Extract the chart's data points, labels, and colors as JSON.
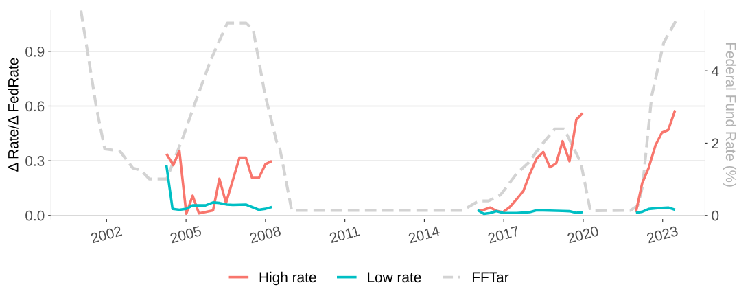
{
  "chart_data": {
    "type": "line",
    "ylabel": "Δ Rate/Δ FedRate",
    "y2label": "Federal Fund Rate (%)",
    "xlim": [
      1999.9,
      2024.6
    ],
    "xticks": [
      2002,
      2005,
      2008,
      2011,
      2014,
      2017,
      2020,
      2023
    ],
    "ylim": [
      -0.02,
      1.125
    ],
    "yticks": [
      {
        "value": 0,
        "label": "0.0"
      },
      {
        "value": 0.3,
        "label": "0.3"
      },
      {
        "value": 0.6,
        "label": "0.6"
      },
      {
        "value": 0.9,
        "label": "0.9"
      }
    ],
    "y2lim": [
      -0.1,
      5.67
    ],
    "y2ticks": [
      0,
      2,
      4
    ],
    "grid": "y",
    "legend": "bottom",
    "series": [
      {
        "name": "High rate",
        "color": "#f8766d",
        "line_style": "solid",
        "x": [
          2004.26,
          2004.52,
          2004.75,
          2005.01,
          2005.25,
          2005.49,
          2006.02,
          2006.26,
          2006.51,
          2007.02,
          2007.26,
          2007.49,
          2007.75,
          2008.0,
          2008.24,
          null,
          2016.01,
          2016.23,
          2016.49,
          2016.72,
          2016.97,
          2017.23,
          2017.49,
          2017.74,
          2017.98,
          2018.24,
          2018.49,
          2018.74,
          2018.98,
          2019.22,
          2019.48,
          2019.74,
          2019.98,
          null,
          2021.99,
          2022.23,
          2022.47,
          2022.73,
          2022.97,
          2023.21,
          2023.47
        ],
        "values": [
          0.338,
          0.276,
          0.354,
          0.009,
          0.108,
          0.011,
          0.027,
          0.201,
          0.068,
          0.317,
          0.317,
          0.207,
          0.206,
          0.281,
          0.298,
          null,
          0.027,
          0.03,
          0.043,
          0.025,
          0.018,
          0.046,
          0.09,
          0.134,
          0.226,
          0.312,
          0.348,
          0.264,
          0.285,
          0.407,
          0.297,
          0.526,
          0.561,
          null,
          0.018,
          0.178,
          0.26,
          0.385,
          0.454,
          0.469,
          0.577
        ]
      },
      {
        "name": "Low rate",
        "color": "#00bfc4",
        "line_style": "solid",
        "x": [
          2004.26,
          2004.49,
          2004.75,
          2005.01,
          2005.25,
          2005.74,
          2006.02,
          2006.26,
          2006.55,
          2006.77,
          2007.26,
          2007.75,
          2008.0,
          2008.24,
          null,
          2016.01,
          2016.25,
          2016.49,
          2016.72,
          2016.97,
          2017.49,
          2017.98,
          2018.24,
          2018.74,
          2019.22,
          2019.48,
          2019.74,
          2019.98,
          null,
          2021.99,
          2022.23,
          2022.47,
          2022.73,
          2022.97,
          2023.21,
          2023.47
        ],
        "values": [
          0.275,
          0.036,
          0.031,
          0.036,
          0.055,
          0.055,
          0.071,
          0.068,
          0.059,
          0.057,
          0.059,
          0.031,
          0.036,
          0.046,
          null,
          0.029,
          0.008,
          0.013,
          0.023,
          0.014,
          0.013,
          0.018,
          0.028,
          0.026,
          0.024,
          0.023,
          0.014,
          0.018,
          null,
          0.014,
          0.02,
          0.035,
          0.039,
          0.041,
          0.043,
          0.031
        ]
      },
      {
        "name": "FFTar",
        "color": "#d3d3d3",
        "line_style": "dashed",
        "axis": "y2",
        "x": [
          2001.03,
          2001.62,
          2001.93,
          2002.5,
          2002.99,
          2003.3,
          2003.61,
          2004.27,
          2004.89,
          2005.33,
          2005.95,
          2006.56,
          2007.27,
          2007.54,
          2007.98,
          2008.42,
          2008.51,
          2008.99,
          2015.44,
          2016.06,
          2016.42,
          2016.87,
          2017.49,
          2017.94,
          2018.39,
          2018.93,
          2019.28,
          2019.64,
          2019.91,
          2020.27,
          2021.79,
          2022.06,
          2022.24,
          2022.59,
          2023.04,
          2023.49
        ],
        "values": [
          5.67,
          2.96,
          1.84,
          1.78,
          1.31,
          1.25,
          1.01,
          1.01,
          2.17,
          3.09,
          4.33,
          5.32,
          5.32,
          5.12,
          3.35,
          2.04,
          1.98,
          0.14,
          0.14,
          0.4,
          0.4,
          0.56,
          1.16,
          1.46,
          1.92,
          2.39,
          2.39,
          1.86,
          1.46,
          0.13,
          0.14,
          0.27,
          0.8,
          3.32,
          4.78,
          5.37
        ]
      }
    ]
  }
}
